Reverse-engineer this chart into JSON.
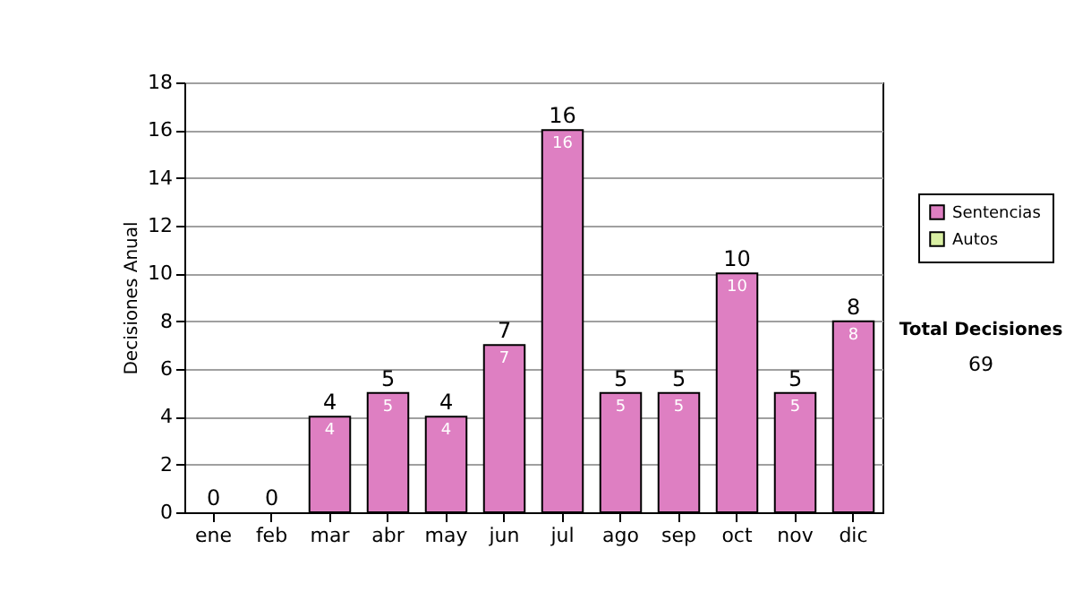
{
  "chart_data": {
    "type": "bar",
    "ylabel": "Decisiones Anual",
    "categories": [
      "ene",
      "feb",
      "mar",
      "abr",
      "may",
      "jun",
      "jul",
      "ago",
      "sep",
      "oct",
      "nov",
      "dic"
    ],
    "series": [
      {
        "name": "Sentencias",
        "color": "#de7fc2",
        "values": [
          0,
          0,
          4,
          5,
          4,
          7,
          16,
          5,
          5,
          10,
          5,
          8
        ],
        "value_labels": [
          null,
          null,
          "4",
          "5",
          "4",
          "7",
          "16",
          "5",
          "5",
          "10",
          "5",
          "8"
        ]
      },
      {
        "name": "Autos",
        "color": "#d9efa3",
        "values": [
          0,
          0,
          0,
          0,
          0,
          0,
          0,
          0,
          0,
          0,
          0,
          0
        ]
      }
    ],
    "stacked": true,
    "totals": [
      "0",
      "0",
      "4",
      "5",
      "4",
      "7",
      "16",
      "5",
      "5",
      "10",
      "5",
      "8"
    ],
    "ylim": [
      0,
      18
    ],
    "yticks": [
      0,
      2,
      4,
      6,
      8,
      10,
      12,
      14,
      16,
      18
    ],
    "grid": "y",
    "legend": "right",
    "annotations": [
      "Total Decisiones",
      "69"
    ]
  }
}
